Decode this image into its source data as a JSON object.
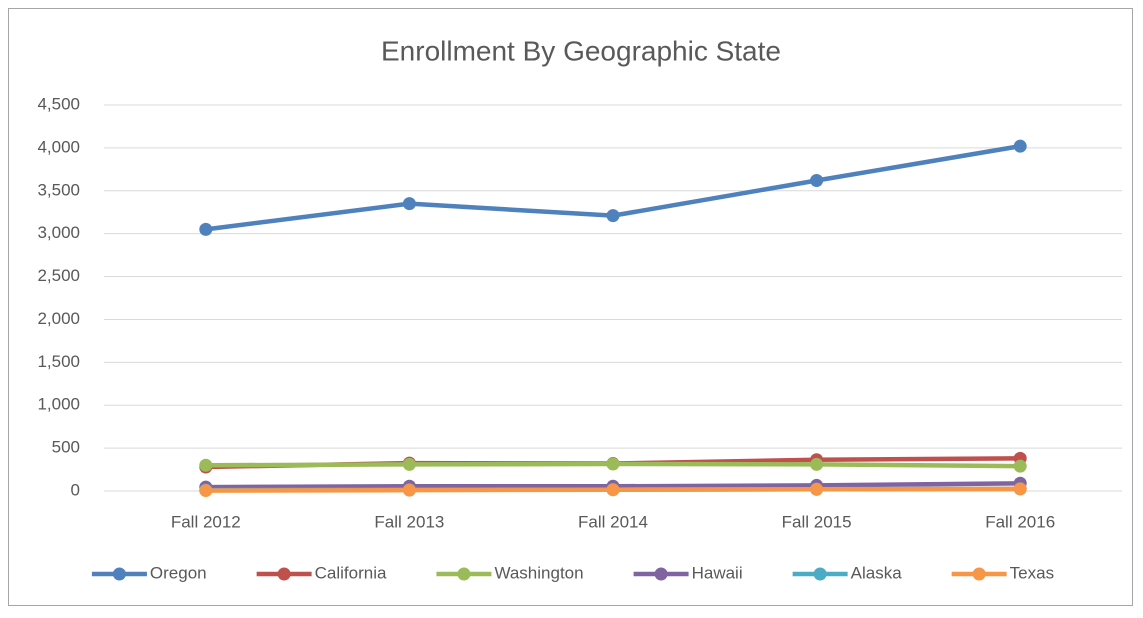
{
  "chart_data": {
    "type": "line",
    "title": "Enrollment By Geographic State",
    "categories": [
      "Fall 2012",
      "Fall 2013",
      "Fall 2014",
      "Fall 2015",
      "Fall 2016"
    ],
    "series": [
      {
        "name": "Oregon",
        "color": "#4f81bd",
        "values": [
          3050,
          3350,
          3210,
          3620,
          4020
        ]
      },
      {
        "name": "California",
        "color": "#c0504d",
        "values": [
          280,
          325,
          320,
          365,
          380
        ]
      },
      {
        "name": "Washington",
        "color": "#9bbb59",
        "values": [
          300,
          310,
          315,
          310,
          290
        ]
      },
      {
        "name": "Hawaii",
        "color": "#8064a2",
        "values": [
          45,
          55,
          55,
          65,
          90
        ]
      },
      {
        "name": "Alaska",
        "color": "#4bacc6",
        "values": [
          10,
          15,
          15,
          20,
          25
        ]
      },
      {
        "name": "Texas",
        "color": "#f79646",
        "values": [
          5,
          10,
          15,
          20,
          25
        ]
      }
    ],
    "ylim": [
      0,
      4500
    ],
    "yticks": [
      0,
      500,
      {
        "value": 1000,
        "label": "1,000"
      },
      {
        "value": 1500,
        "label": "1,500"
      },
      {
        "value": 2000,
        "label": "2,000"
      },
      {
        "value": 2500,
        "label": "2,500"
      },
      {
        "value": 3000,
        "label": "3,000"
      },
      {
        "value": 3500,
        "label": "3,500"
      },
      {
        "value": 4000,
        "label": "4,000"
      },
      {
        "value": 4500,
        "label": "4,500"
      }
    ],
    "grid": true,
    "legend": "bottom"
  }
}
